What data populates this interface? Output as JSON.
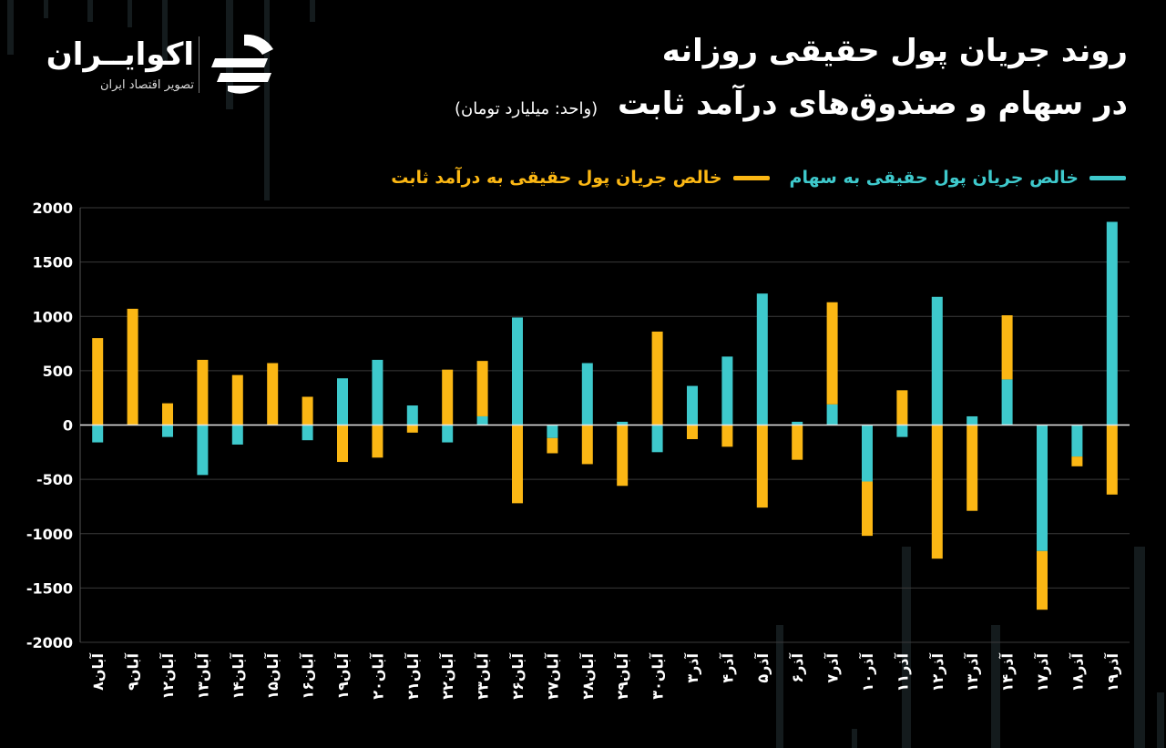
{
  "header": {
    "title_line1": "روند جریان پول حقیقی روزانه",
    "title_line2": "در سهام و صندوق‌های درآمد ثابت",
    "unit": "(واحد: میلیارد تومان)"
  },
  "brand": {
    "name": "اکوایــران",
    "tagline": "تصویر اقتصاد ایران"
  },
  "colors": {
    "stocks": "#3ec9cc",
    "fixed_income": "#fbb714",
    "background": "#000000",
    "grid": "#3a3a3a"
  },
  "chart_data": {
    "type": "bar",
    "stacked": true,
    "ylim": [
      -2000,
      2000
    ],
    "yticks": [
      2000,
      1500,
      1000,
      500,
      0,
      -500,
      -1000,
      -1500,
      -2000
    ],
    "ytick_labels": [
      "2000",
      "1500",
      "1000",
      "500",
      "0",
      "-500",
      "-1000",
      "-1500",
      "-2000"
    ],
    "grid": true,
    "legend_position": "top-right",
    "categories": [
      "آبان۸",
      "آبان۹",
      "آبان۱۲",
      "آبان۱۳",
      "آبان۱۴",
      "آبان۱۵",
      "آبان۱۶",
      "آبان۱۹",
      "آبان۲۰",
      "آبان۲۱",
      "آبان۲۲",
      "آبان۲۳",
      "آبان۲۶",
      "آبان۲۷",
      "آبان۲۸",
      "آبان۲۹",
      "آبان۳۰",
      "آذر۳",
      "آذر۴",
      "آذر۵",
      "آذر۶",
      "آذر۷",
      "آذر۱۰",
      "آذر۱۱",
      "آذر۱۲",
      "آذر۱۳",
      "آذر۱۴",
      "آذر۱۷",
      "آذر۱۸",
      "آذر۱۹"
    ],
    "series": [
      {
        "name": "خالص جریان پول حقیقی به سهام",
        "color": "#3ec9cc",
        "values": [
          -160,
          0,
          -110,
          -460,
          -180,
          0,
          -140,
          430,
          600,
          180,
          -160,
          80,
          990,
          -120,
          570,
          30,
          -250,
          360,
          630,
          1210,
          30,
          190,
          -520,
          -110,
          1180,
          80,
          420,
          -1160,
          -290,
          1870
        ]
      },
      {
        "name": "خالص جریان پول حقیقی به درآمد ثابت",
        "color": "#fbb714",
        "values": [
          800,
          1070,
          200,
          600,
          460,
          570,
          260,
          -340,
          -300,
          -70,
          510,
          510,
          -720,
          -140,
          -360,
          -560,
          860,
          -130,
          -200,
          -760,
          -320,
          940,
          -500,
          320,
          -1230,
          -790,
          590,
          -540,
          -90,
          -640
        ]
      }
    ]
  }
}
